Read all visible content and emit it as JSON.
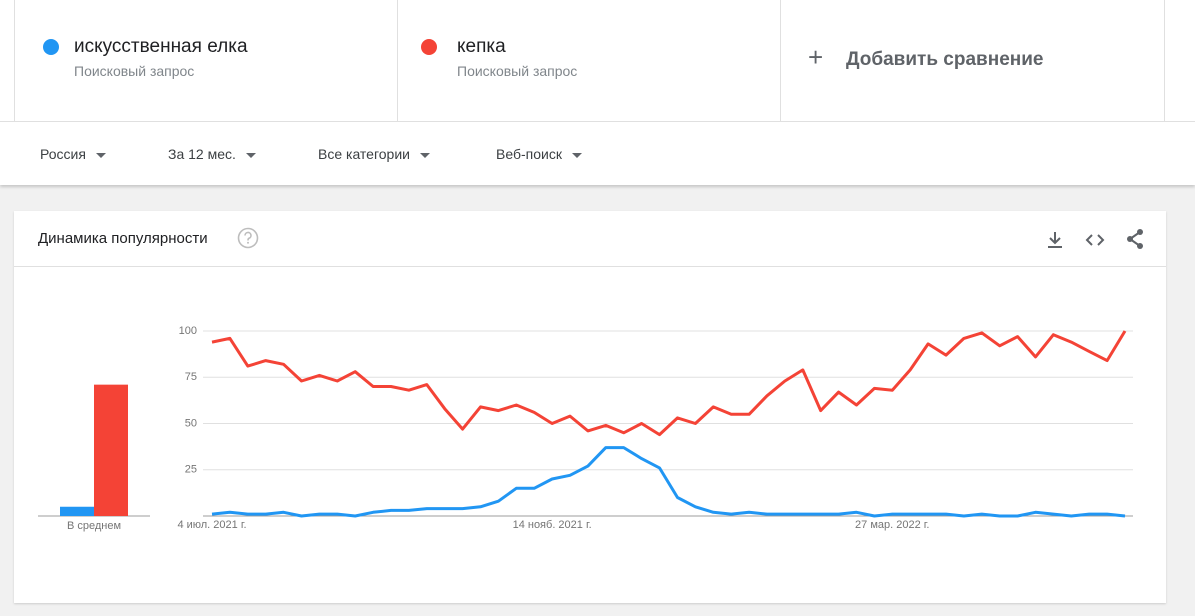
{
  "comparisons": [
    {
      "type": "Поисковый запрос"
    },
    {
      "type": "Поисковый запрос"
    }
  ],
  "add_comparison": "Добавить сравнение",
  "filters": [
    "Россия",
    "За 12 мес.",
    "Все категории",
    "Веб-поиск"
  ],
  "card_title": "Динамика популярности",
  "chart_data": {
    "type": "line",
    "categories": [
      "4 июл. 2021 г.",
      null,
      null,
      null,
      null,
      null,
      null,
      null,
      null,
      null,
      null,
      null,
      null,
      null,
      null,
      null,
      null,
      null,
      null,
      "14 нояб. 2021 г.",
      null,
      null,
      null,
      null,
      null,
      null,
      null,
      null,
      null,
      null,
      null,
      null,
      null,
      null,
      null,
      null,
      null,
      null,
      "27 мар. 2022 г.",
      null,
      null,
      null,
      null,
      null,
      null,
      null,
      null,
      null,
      null,
      null,
      null,
      null
    ],
    "series": [
      {
        "name": "искусственная елка",
        "color": "#2196f3",
        "values": [
          1,
          2,
          1,
          1,
          2,
          0,
          1,
          1,
          0,
          2,
          3,
          3,
          4,
          4,
          4,
          5,
          8,
          15,
          15,
          20,
          22,
          27,
          37,
          37,
          31,
          26,
          10,
          5,
          2,
          1,
          2,
          1,
          1,
          1,
          1,
          1,
          2,
          0,
          1,
          1,
          1,
          1,
          0,
          1,
          0,
          0,
          2,
          1,
          0,
          1,
          1,
          0
        ]
      },
      {
        "name": "кепка",
        "color": "#f44336",
        "values": [
          94,
          96,
          81,
          84,
          82,
          73,
          76,
          73,
          78,
          70,
          70,
          68,
          71,
          58,
          47,
          59,
          57,
          60,
          56,
          50,
          54,
          46,
          49,
          45,
          50,
          44,
          53,
          50,
          59,
          55,
          55,
          65,
          73,
          79,
          57,
          67,
          60,
          69,
          68,
          79,
          93,
          87,
          96,
          99,
          92,
          97,
          86,
          98,
          94,
          89,
          84,
          100
        ]
      }
    ],
    "ylim": [
      0,
      100
    ],
    "yticks": [
      25,
      50,
      75,
      100
    ],
    "grid": true,
    "average": {
      "label": "В среднем",
      "values": [
        5,
        71
      ]
    }
  }
}
